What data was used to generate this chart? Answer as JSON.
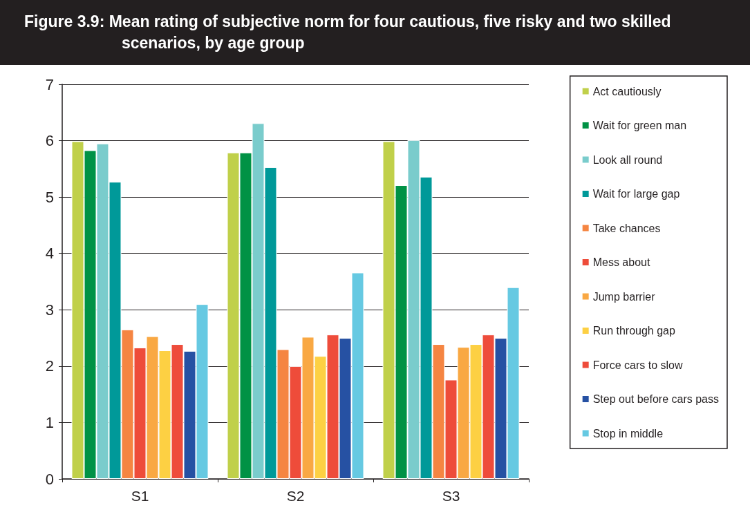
{
  "chart_data": {
    "type": "bar",
    "title": "Figure 3.9:  Mean rating of subjective norm for four cautious, five risky and two skilled scenarios, by age group",
    "categories": [
      "S1",
      "S2",
      "S3"
    ],
    "series": [
      {
        "name": "Act cautiously",
        "color": "#c0d04a",
        "values": [
          5.99,
          5.79,
          5.99
        ]
      },
      {
        "name": "Wait for green man",
        "color": "#009245",
        "values": [
          5.83,
          5.79,
          5.21
        ]
      },
      {
        "name": "Look all round",
        "color": "#7acccc",
        "values": [
          5.95,
          6.31,
          6.01
        ]
      },
      {
        "name": "Wait for large gap",
        "color": "#009999",
        "values": [
          5.27,
          5.53,
          5.36
        ]
      },
      {
        "name": "Take chances",
        "color": "#f58542",
        "values": [
          2.65,
          2.3,
          2.39
        ]
      },
      {
        "name": "Mess about",
        "color": "#ee4c3a",
        "values": [
          2.33,
          2.0,
          1.76
        ]
      },
      {
        "name": "Jump barrier",
        "color": "#f9a843",
        "values": [
          2.53,
          2.52,
          2.34
        ]
      },
      {
        "name": "Run through gap",
        "color": "#fdd043",
        "values": [
          2.28,
          2.18,
          2.39
        ]
      },
      {
        "name": "Force cars to slow",
        "color": "#ee4c3b",
        "values": [
          2.39,
          2.56,
          2.56
        ]
      },
      {
        "name": "Step out before cars pass",
        "color": "#2651a3",
        "values": [
          2.27,
          2.5,
          2.5
        ]
      },
      {
        "name": "Stop in middle",
        "color": "#66c9e2",
        "values": [
          3.1,
          3.66,
          3.4
        ]
      }
    ],
    "ylim": [
      0,
      7
    ],
    "yticks": [
      0,
      1,
      2,
      3,
      4,
      5,
      6,
      7
    ],
    "grid": "y",
    "legend": "right"
  }
}
